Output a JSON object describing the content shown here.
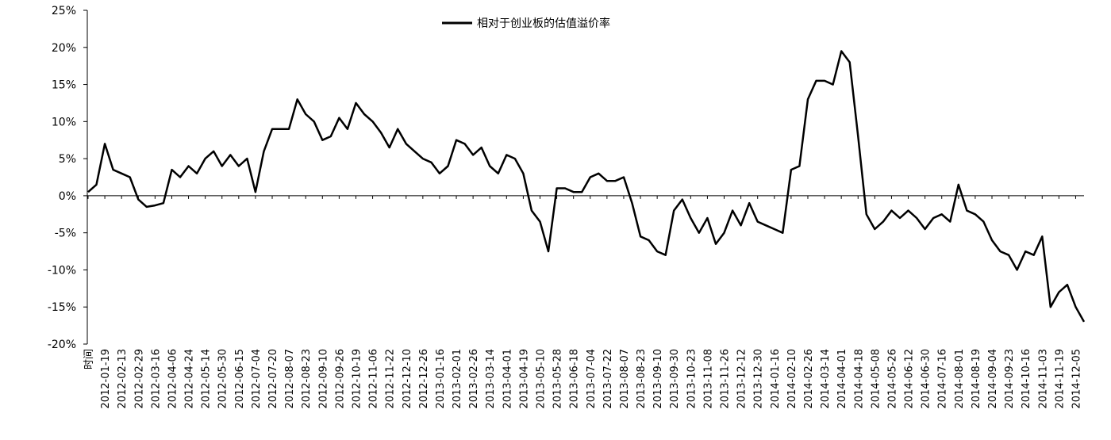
{
  "chart_data": {
    "type": "line",
    "categories": [
      "时间",
      null,
      "2012-01-19",
      null,
      "2012-02-13",
      null,
      "2012-02-29",
      null,
      "2012-03-16",
      null,
      "2012-04-06",
      null,
      "2012-04-24",
      null,
      "2012-05-14",
      null,
      "2012-05-30",
      null,
      "2012-06-15",
      null,
      "2012-07-04",
      null,
      "2012-07-20",
      null,
      "2012-08-07",
      null,
      "2012-08-23",
      null,
      "2012-09-10",
      null,
      "2012-09-26",
      null,
      "2012-10-19",
      null,
      "2012-11-06",
      null,
      "2012-11-22",
      null,
      "2012-12-10",
      null,
      "2012-12-26",
      null,
      "2013-01-16",
      null,
      "2013-02-01",
      null,
      "2013-02-26",
      null,
      "2013-03-14",
      null,
      "2013-04-01",
      null,
      "2013-04-19",
      null,
      "2013-05-10",
      null,
      "2013-05-28",
      null,
      "2013-06-18",
      null,
      "2013-07-04",
      null,
      "2013-07-22",
      null,
      "2013-08-07",
      null,
      "2013-08-23",
      null,
      "2013-09-10",
      null,
      "2013-09-30",
      null,
      "2013-10-23",
      null,
      "2013-11-08",
      null,
      "2013-11-26",
      null,
      "2013-12-12",
      null,
      "2013-12-30",
      null,
      "2014-01-16",
      null,
      "2014-02-10",
      null,
      "2014-02-26",
      null,
      "2014-03-14",
      null,
      "2014-04-01",
      null,
      "2014-04-18",
      null,
      "2014-05-08",
      null,
      "2014-05-26",
      null,
      "2014-06-12",
      null,
      "2014-06-30",
      null,
      "2014-07-16",
      null,
      "2014-08-01",
      null,
      "2014-08-19",
      null,
      "2014-09-04",
      null,
      "2014-09-23",
      null,
      "2014-10-16",
      null,
      "2014-11-03",
      null,
      "2014-11-19",
      null,
      "2014-12-05",
      null
    ],
    "series": [
      {
        "name": "相对于创业板的估值溢价率",
        "color": "#000000",
        "values": [
          0.5,
          1.5,
          7,
          3.5,
          3,
          2.5,
          -0.5,
          -1.5,
          -1.3,
          -1,
          3.5,
          2.5,
          4,
          3,
          5,
          6,
          4,
          5.5,
          4,
          5,
          0.5,
          6,
          9,
          9,
          9,
          13,
          11,
          10,
          7.5,
          8,
          10.5,
          9,
          12.5,
          11,
          10,
          8.5,
          6.5,
          9,
          7,
          6,
          5,
          4.5,
          3,
          4,
          7.5,
          7,
          5.5,
          6.5,
          4,
          3,
          5.5,
          5,
          3,
          -2,
          -3.5,
          -7.5,
          1,
          1,
          0.5,
          0.5,
          2.5,
          3,
          2,
          2,
          2.5,
          -1,
          -5.5,
          -6,
          -7.5,
          -8,
          -2,
          -0.5,
          -3,
          -5,
          -3,
          -6.5,
          -5,
          -2,
          -4,
          -1,
          -3.5,
          -4,
          -4.5,
          -5,
          3.5,
          4,
          13,
          15.5,
          15.5,
          15,
          19.5,
          18,
          8,
          -2.5,
          -4.5,
          -3.5,
          -2,
          -3,
          -2,
          -3,
          -4.5,
          -3,
          -2.5,
          -3.5,
          1.5,
          -2,
          -2.5,
          -3.5,
          -6,
          -7.5,
          -8,
          -10,
          -7.5,
          -8,
          -5.5,
          -15,
          -13,
          -12,
          -15,
          -17
        ]
      }
    ],
    "ylim": [
      -20,
      25
    ],
    "yticks": [
      {
        "value": -20,
        "label": "-20%"
      },
      {
        "value": -15,
        "label": "-15%"
      },
      {
        "value": -10,
        "label": "-10%"
      },
      {
        "value": -5,
        "label": "-5%"
      },
      {
        "value": 0,
        "label": "0%"
      },
      {
        "value": 5,
        "label": "5%"
      },
      {
        "value": 10,
        "label": "10%"
      },
      {
        "value": 15,
        "label": "15%"
      },
      {
        "value": 20,
        "label": "20%"
      },
      {
        "value": 25,
        "label": "25%"
      }
    ],
    "legend": "top"
  }
}
